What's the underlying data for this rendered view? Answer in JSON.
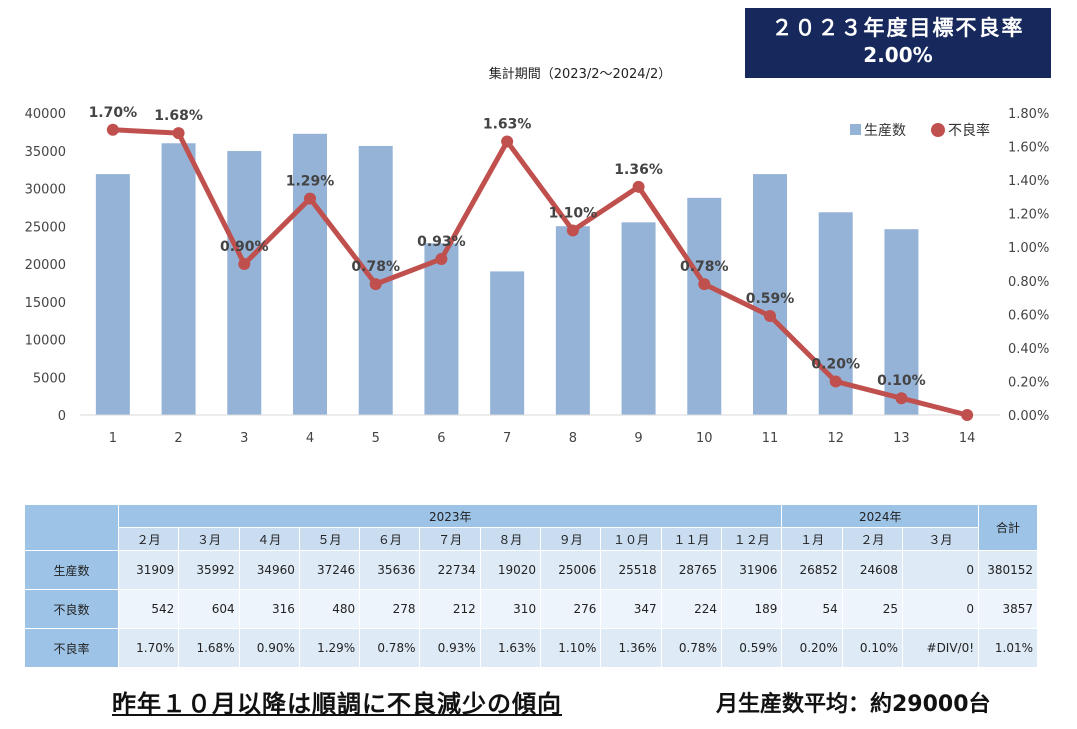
{
  "header": {
    "target_line1": "２０２３年度目標不良率",
    "target_line2": "2.00%",
    "period": "集計期間（2023/2〜2024/2）"
  },
  "chart_data": {
    "type": "bar",
    "categories": [
      "1",
      "2",
      "3",
      "4",
      "5",
      "6",
      "7",
      "8",
      "9",
      "10",
      "11",
      "12",
      "13",
      "14"
    ],
    "series": [
      {
        "name": "生産数",
        "type": "bar",
        "axis": "left",
        "values": [
          31909,
          35992,
          34960,
          37246,
          35636,
          22734,
          19020,
          25006,
          25518,
          28765,
          31906,
          26852,
          24608,
          0
        ],
        "color": "#95b3d7"
      },
      {
        "name": "不良率",
        "type": "line",
        "axis": "right",
        "values": [
          1.7,
          1.68,
          0.9,
          1.29,
          0.78,
          0.93,
          1.63,
          1.1,
          1.36,
          0.78,
          0.59,
          0.2,
          0.1,
          0.0
        ],
        "labels": [
          "1.70%",
          "1.68%",
          "0.90%",
          "1.29%",
          "0.78%",
          "0.93%",
          "1.63%",
          "1.10%",
          "1.36%",
          "0.78%",
          "0.59%",
          "0.20%",
          "0.10%",
          ""
        ],
        "color": "#c0504d"
      }
    ],
    "y_left": {
      "min": 0,
      "max": 40000,
      "ticks": [
        "0",
        "5000",
        "10000",
        "15000",
        "20000",
        "25000",
        "30000",
        "35000",
        "40000"
      ]
    },
    "y_right": {
      "min": 0,
      "max": 1.8,
      "ticks": [
        "0.00%",
        "0.20%",
        "0.40%",
        "0.60%",
        "0.80%",
        "1.00%",
        "1.20%",
        "1.40%",
        "1.60%",
        "1.80%"
      ]
    },
    "legend": {
      "position": "top-right"
    },
    "grid": false
  },
  "table": {
    "year_2023": "2023年",
    "year_2024": "2024年",
    "total_label": "合計",
    "months": [
      "２月",
      "３月",
      "４月",
      "５月",
      "６月",
      "７月",
      "８月",
      "９月",
      "１０月",
      "１１月",
      "１２月",
      "１月",
      "２月",
      "３月"
    ],
    "rows": [
      {
        "label": "生産数",
        "values": [
          "31909",
          "35992",
          "34960",
          "37246",
          "35636",
          "22734",
          "19020",
          "25006",
          "25518",
          "28765",
          "31906",
          "26852",
          "24608",
          "0"
        ],
        "total": "380152"
      },
      {
        "label": "不良数",
        "values": [
          "542",
          "604",
          "316",
          "480",
          "278",
          "212",
          "310",
          "276",
          "347",
          "224",
          "189",
          "54",
          "25",
          "0"
        ],
        "total": "3857"
      },
      {
        "label": "不良率",
        "values": [
          "1.70%",
          "1.68%",
          "0.90%",
          "1.29%",
          "0.78%",
          "0.93%",
          "1.63%",
          "1.10%",
          "1.36%",
          "0.78%",
          "0.59%",
          "0.20%",
          "0.10%",
          "#DIV/0!"
        ],
        "total": "1.01%"
      }
    ]
  },
  "footer": {
    "left": "昨年１０月以降は順調に不良減少の傾向",
    "right": "月生産数平均：約29000台"
  }
}
